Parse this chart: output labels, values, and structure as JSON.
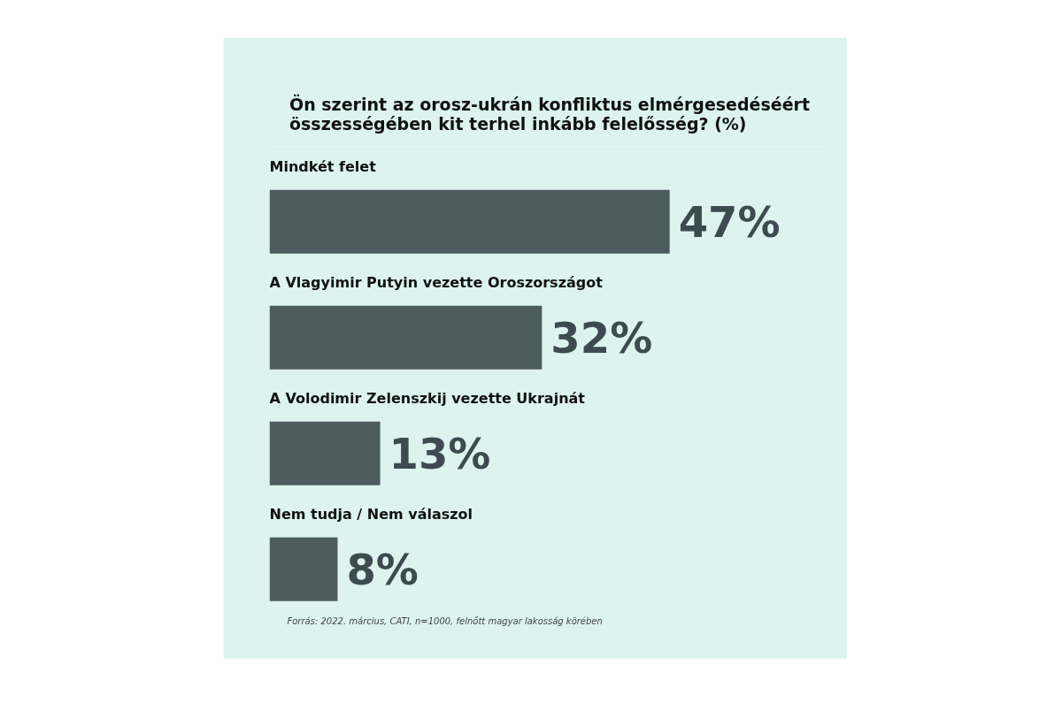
{
  "chart_data": {
    "type": "bar",
    "orientation": "horizontal",
    "title": "Ön szerint az orosz-ukrán konfliktus elmérgesedéséért\nösszességében kit terhel inkább felelősség? (%)",
    "categories": [
      "Mindkét felet",
      "A Vlagyimir Putyin vezette Oroszországot",
      "A Volodimir Zelenszkij vezette Ukrajnát",
      "Nem tudja / Nem válaszol"
    ],
    "values": [
      47,
      32,
      13,
      8
    ],
    "value_labels": [
      "47%",
      "32%",
      "13%",
      "8%"
    ],
    "color": "#4d5a5e",
    "annotations": [
      "Forrás: 2022. március, CATI, n=1000, felnőtt magyar lakosság körében"
    ]
  }
}
